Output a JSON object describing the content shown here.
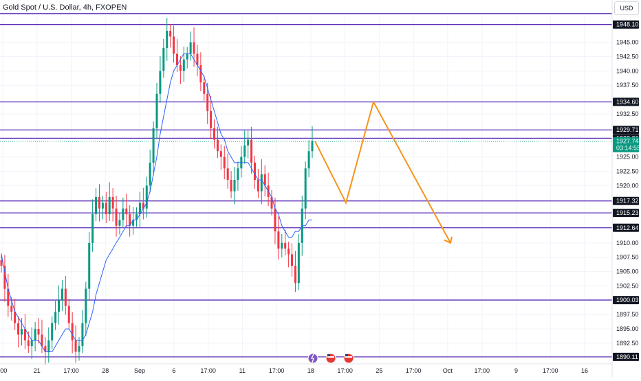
{
  "header": {
    "title": "Gold Spot / U.S. Dollar, 4h, FXOPEN",
    "currency_label": "USD"
  },
  "colors": {
    "up": "#089981",
    "down": "#f23645",
    "level_line": "#5b2fb8",
    "ma": "#2962ff",
    "projection": "#f7931a",
    "price_tag": "#089981",
    "label_bg": "#131722"
  },
  "price_axis": {
    "ticks": [
      "1945.00",
      "1942.50",
      "1940.00",
      "1937.50",
      "1932.50",
      "1925.00",
      "1922.50",
      "1920.00",
      "1910.00",
      "1907.50",
      "1905.00",
      "1902.50",
      "1897.50",
      "1895.00",
      "1892.50"
    ]
  },
  "time_axis": {
    "labels": [
      ":00",
      "21",
      "17:00",
      "28",
      "Sep",
      "6",
      "17:00",
      "11",
      "17:00",
      "18",
      "17:00",
      "25",
      "17:00",
      "Oct",
      "17:00",
      "9",
      "17:00",
      "16"
    ]
  },
  "current_price": {
    "value": "1927.74",
    "countdown": "03:14:55"
  },
  "bottom_icons": [
    "lightning-icon",
    "us-flag-icon",
    "us-flag-icon"
  ],
  "chart_data": {
    "type": "candlestick",
    "title": "Gold Spot / U.S. Dollar, 4h, FXOPEN",
    "ylim": [
      1889.5,
      1949.5
    ],
    "grid": true,
    "horizontal_levels": [
      {
        "price": 1950.0,
        "label": ""
      },
      {
        "price": 1948.1,
        "label": "1948.10"
      },
      {
        "price": 1934.6,
        "label": "1934.60"
      },
      {
        "price": 1929.71,
        "label": "1929.71"
      },
      {
        "price": 1928.26,
        "label": "1928.26"
      },
      {
        "price": 1917.32,
        "label": "1917.32"
      },
      {
        "price": 1915.23,
        "label": "1915.23"
      },
      {
        "price": 1912.64,
        "label": "1912.64"
      },
      {
        "price": 1900.03,
        "label": "1900.03"
      },
      {
        "price": 1890.11,
        "label": "1890.11"
      }
    ],
    "closes": [
      1906,
      1902,
      1899,
      1898,
      1896,
      1894,
      1895,
      1893,
      1892,
      1893,
      1895,
      1894,
      1892,
      1891,
      1893,
      1896,
      1898,
      1900,
      1902,
      1899,
      1896,
      1893,
      1891,
      1892,
      1896,
      1902,
      1910,
      1915,
      1918,
      1916,
      1917,
      1915,
      1918,
      1916,
      1913,
      1914,
      1916,
      1915,
      1913,
      1914,
      1915,
      1917,
      1916,
      1920,
      1924,
      1930,
      1936,
      1940,
      1944,
      1947,
      1946,
      1943,
      1941,
      1940,
      1942,
      1943,
      1945,
      1943,
      1941,
      1938,
      1936,
      1933,
      1930,
      1928,
      1926,
      1925,
      1923,
      1921,
      1919,
      1921,
      1923,
      1925,
      1927,
      1928,
      1924,
      1921,
      1919,
      1922,
      1920,
      1918,
      1916,
      1912,
      1909,
      1910,
      1909,
      1908,
      1906,
      1903,
      1910,
      1916,
      1923,
      1926,
      1927.74
    ],
    "ma": [
      1908,
      1905,
      1902,
      1900,
      1898,
      1897,
      1896,
      1895,
      1894,
      1893,
      1893,
      1893,
      1892,
      1891,
      1891,
      1891,
      1892,
      1893,
      1894,
      1895,
      1895,
      1894,
      1893,
      1893,
      1893,
      1894,
      1896,
      1898,
      1901,
      1903,
      1905,
      1907,
      1908,
      1909,
      1910,
      1911,
      1912,
      1913,
      1913,
      1914,
      1914,
      1915,
      1916,
      1917,
      1919,
      1922,
      1925,
      1929,
      1932,
      1935,
      1938,
      1940,
      1941,
      1942,
      1943,
      1943,
      1943,
      1942,
      1941,
      1940,
      1939,
      1937,
      1935,
      1933,
      1931,
      1929,
      1928,
      1926,
      1925,
      1924,
      1924,
      1924,
      1924,
      1924,
      1923,
      1922,
      1921,
      1921,
      1920,
      1919,
      1918,
      1916,
      1915,
      1913,
      1912,
      1911,
      1911,
      1912,
      1912,
      1913,
      1913,
      1914,
      1914
    ],
    "projection": [
      1927.74,
      1917.0,
      1934.6,
      1910.0
    ]
  }
}
